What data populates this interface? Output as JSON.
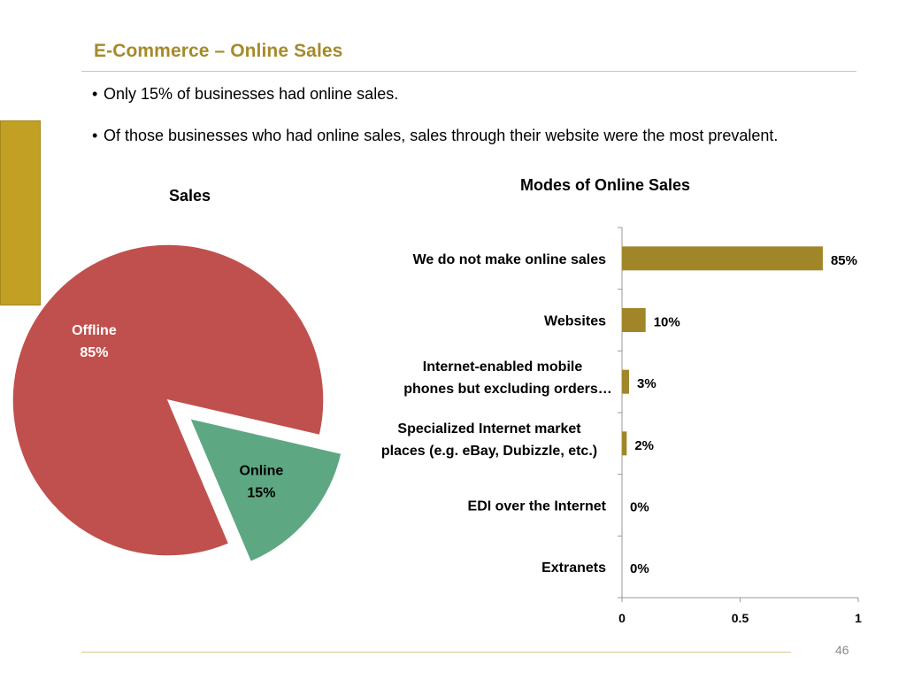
{
  "slide": {
    "title": "E-Commerce – Online Sales",
    "bullets": [
      "Only 15% of businesses had online sales.",
      "Of those businesses who had online sales, sales through their website were the most prevalent."
    ],
    "bullet_glyph": "•",
    "page_number": "46"
  },
  "colors": {
    "title": "#a58a2b",
    "accent_bar": "#c2a024",
    "pie_offline": "#c0504d",
    "pie_online": "#5da883",
    "bar_fill": "#a08628"
  },
  "chart_data": [
    {
      "type": "pie",
      "title": "Sales",
      "slices": [
        {
          "label": "Offline",
          "value": 85,
          "display": "85%",
          "color": "#c0504d"
        },
        {
          "label": "Online",
          "value": 15,
          "display": "15%",
          "color": "#5da883",
          "exploded": true
        }
      ],
      "legend": "none"
    },
    {
      "type": "bar",
      "orientation": "horizontal",
      "title": "Modes of Online Sales",
      "categories": [
        [
          "We do not make online sales"
        ],
        [
          "Websites"
        ],
        [
          "Internet-enabled mobile",
          "phones but excluding orders…"
        ],
        [
          "Specialized Internet market",
          "places (e.g. eBay, Dubizzle, etc.)"
        ],
        [
          "EDI over the Internet"
        ],
        [
          "Extranets"
        ]
      ],
      "values": [
        0.85,
        0.1,
        0.03,
        0.02,
        0.0,
        0.0
      ],
      "data_labels": [
        "85%",
        "10%",
        "3%",
        "2%",
        "0%",
        "0%"
      ],
      "xlim": [
        0,
        1
      ],
      "xticks": [
        0,
        0.5,
        1
      ],
      "xtick_labels": [
        "0",
        "0.5",
        "1"
      ],
      "grid": false,
      "legend": "none"
    }
  ]
}
